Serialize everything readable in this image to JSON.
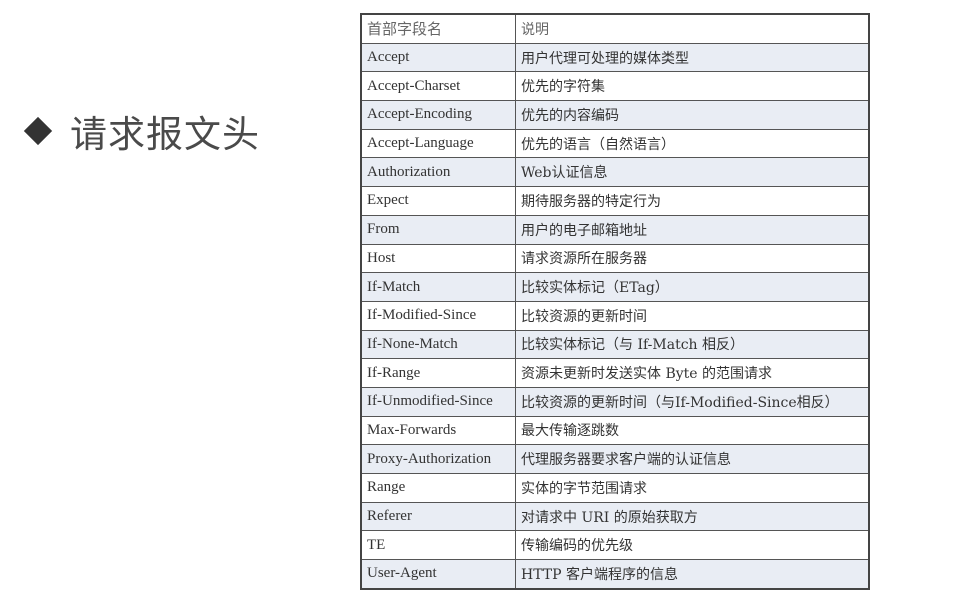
{
  "heading": {
    "icon": "diamond-bullet-icon",
    "text": "请求报文头"
  },
  "table": {
    "headers": [
      "首部字段名",
      "说明"
    ],
    "rows": [
      [
        "Accept",
        "用户代理可处理的媒体类型"
      ],
      [
        "Accept-Charset",
        "优先的字符集"
      ],
      [
        "Accept-Encoding",
        "优先的内容编码"
      ],
      [
        "Accept-Language",
        "优先的语言（自然语言）"
      ],
      [
        "Authorization",
        "Web认证信息"
      ],
      [
        "Expect",
        "期待服务器的特定行为"
      ],
      [
        "From",
        "用户的电子邮箱地址"
      ],
      [
        "Host",
        "请求资源所在服务器"
      ],
      [
        "If-Match",
        "比较实体标记（ETag）"
      ],
      [
        "If-Modified-Since",
        "比较资源的更新时间"
      ],
      [
        "If-None-Match",
        "比较实体标记（与 If-Match 相反）"
      ],
      [
        "If-Range",
        "资源未更新时发送实体 Byte 的范围请求"
      ],
      [
        "If-Unmodified-Since",
        "比较资源的更新时间（与If-Modified-Since相反）"
      ],
      [
        "Max-Forwards",
        "最大传输逐跳数"
      ],
      [
        "Proxy-Authorization",
        "代理服务器要求客户端的认证信息"
      ],
      [
        "Range",
        "实体的字节范围请求"
      ],
      [
        "Referer",
        "对请求中 URI 的原始获取方"
      ],
      [
        "TE",
        "传输编码的优先级"
      ],
      [
        "User-Agent",
        "HTTP 客户端程序的信息"
      ]
    ]
  }
}
